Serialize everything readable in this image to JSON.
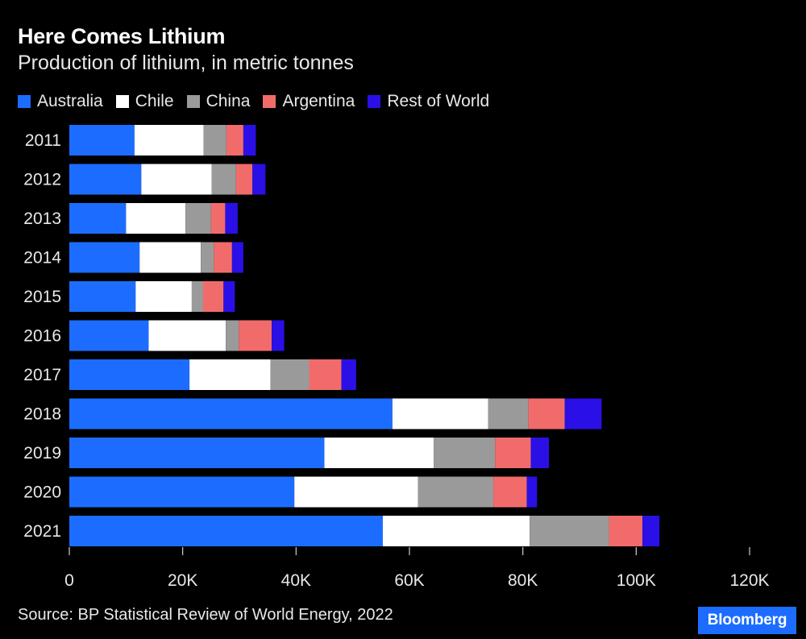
{
  "header": {
    "title": "Here Comes Lithium",
    "subtitle": "Production of lithium, in metric tonnes"
  },
  "footer": {
    "source": "Source: BP Statistical Review of World Energy, 2022",
    "logo_text": "Bloomberg",
    "logo_color": "#1c6dff"
  },
  "chart_data": {
    "type": "bar",
    "orientation": "horizontal",
    "stacked": true,
    "title": "Here Comes Lithium",
    "subtitle": "Production of lithium, in metric tonnes",
    "xlabel": "",
    "ylabel": "",
    "xlim": [
      0,
      120000
    ],
    "x_ticks": [
      0,
      20000,
      40000,
      60000,
      80000,
      100000,
      120000
    ],
    "x_tick_labels": [
      "0",
      "20K",
      "40K",
      "60K",
      "80K",
      "100K",
      "120K"
    ],
    "legend_position": "top-left",
    "grid": false,
    "categories": [
      "2011",
      "2012",
      "2013",
      "2014",
      "2015",
      "2016",
      "2017",
      "2018",
      "2019",
      "2020",
      "2021"
    ],
    "series": [
      {
        "name": "Australia",
        "color": "#1c6dff",
        "values": [
          11500,
          12700,
          10000,
          12400,
          11700,
          14000,
          21200,
          57000,
          45000,
          39700,
          55300
        ]
      },
      {
        "name": "Chile",
        "color": "#ffffff",
        "values": [
          12200,
          12400,
          10500,
          10800,
          9900,
          13600,
          14300,
          16900,
          19300,
          21800,
          25900
        ]
      },
      {
        "name": "China",
        "color": "#9a9a9a",
        "values": [
          4000,
          4300,
          4500,
          2300,
          2000,
          2300,
          6800,
          7100,
          10800,
          13300,
          14000
        ]
      },
      {
        "name": "Argentina",
        "color": "#f26b6b",
        "values": [
          3000,
          2900,
          2500,
          3200,
          3600,
          5800,
          5700,
          6400,
          6300,
          5900,
          5900
        ]
      },
      {
        "name": "Rest of World",
        "color": "#2a10e6",
        "values": [
          2200,
          2300,
          2200,
          2000,
          2000,
          2200,
          2600,
          6500,
          3200,
          1800,
          3000
        ]
      }
    ]
  }
}
